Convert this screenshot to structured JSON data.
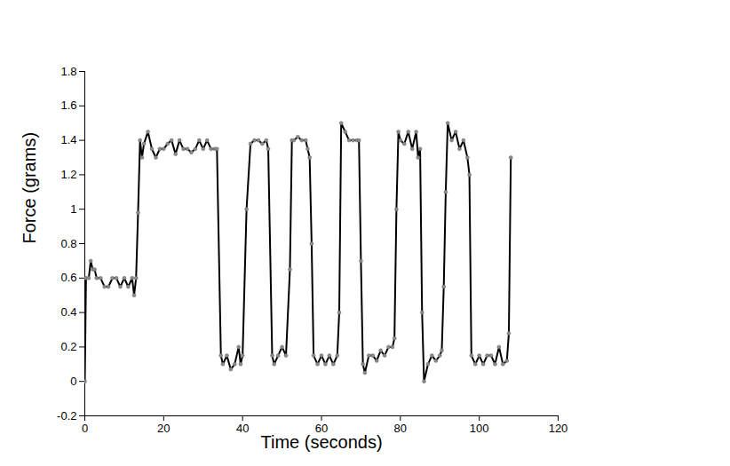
{
  "chart_data": {
    "type": "line",
    "xlabel": "Time (seconds)",
    "ylabel": "Force (grams)",
    "color": "#000000",
    "marker": "circle",
    "xlim": [
      0,
      120
    ],
    "xticks": [
      0,
      20,
      40,
      60,
      80,
      100,
      120
    ],
    "ylim": [
      -0.2,
      1.8
    ],
    "yticks": [
      -0.2,
      0,
      0.2,
      0.4,
      0.6,
      0.8,
      1,
      1.2,
      1.4,
      1.6,
      1.8
    ],
    "grid": false,
    "x": [
      0,
      0.3,
      1,
      1.5,
      2,
      2.5,
      3,
      4,
      5,
      6,
      7,
      8,
      9,
      10,
      11,
      12,
      12.5,
      13,
      13.5,
      14,
      14.5,
      15,
      16,
      17,
      18,
      19,
      20,
      21,
      22,
      23,
      24,
      25,
      26,
      27,
      28,
      29,
      30,
      31,
      32,
      33,
      33.5,
      34.5,
      35,
      36,
      37,
      38,
      39,
      39.5,
      40,
      41,
      42,
      43,
      44,
      45,
      46,
      46.5,
      47.5,
      48,
      49,
      50,
      51,
      52,
      52.5,
      53,
      54,
      55,
      56,
      56.5,
      57,
      57.5,
      58,
      59,
      60,
      61,
      62,
      63,
      64,
      64.5,
      65,
      66,
      67,
      68,
      69,
      69.5,
      70,
      70.5,
      71,
      72,
      73,
      74,
      75,
      76,
      77,
      78,
      78.5,
      79,
      79.5,
      80,
      81,
      82,
      83,
      84,
      84.5,
      85,
      85.5,
      86,
      87,
      88,
      89,
      90,
      90.5,
      91,
      91.5,
      92,
      93,
      94,
      95,
      96,
      97,
      97.5,
      98,
      99,
      100,
      101,
      102,
      103,
      104,
      105,
      106,
      107,
      107.5,
      108
    ],
    "values": [
      0,
      0.6,
      0.6,
      0.7,
      0.65,
      0.65,
      0.6,
      0.6,
      0.55,
      0.55,
      0.6,
      0.6,
      0.55,
      0.6,
      0.55,
      0.6,
      0.5,
      0.6,
      0.98,
      1.4,
      1.3,
      1.38,
      1.45,
      1.35,
      1.3,
      1.35,
      1.35,
      1.38,
      1.4,
      1.32,
      1.4,
      1.35,
      1.35,
      1.33,
      1.35,
      1.4,
      1.35,
      1.4,
      1.35,
      1.35,
      1.35,
      0.15,
      0.1,
      0.15,
      0.07,
      0.1,
      0.2,
      0.1,
      0.15,
      1.0,
      1.38,
      1.4,
      1.4,
      1.38,
      1.4,
      1.35,
      0.15,
      0.1,
      0.15,
      0.2,
      0.15,
      0.65,
      1.4,
      1.4,
      1.42,
      1.4,
      1.4,
      1.35,
      1.3,
      0.8,
      0.15,
      0.1,
      0.15,
      0.1,
      0.15,
      0.1,
      0.15,
      0.4,
      1.5,
      1.45,
      1.4,
      1.4,
      1.4,
      1.4,
      0.7,
      0.1,
      0.05,
      0.15,
      0.15,
      0.12,
      0.18,
      0.15,
      0.2,
      0.2,
      0.25,
      1.0,
      1.45,
      1.4,
      1.38,
      1.45,
      1.35,
      1.45,
      1.3,
      1.35,
      0.4,
      0,
      0.1,
      0.15,
      0.12,
      0.15,
      0.18,
      0.55,
      1.1,
      1.5,
      1.4,
      1.45,
      1.35,
      1.4,
      1.3,
      1.2,
      0.15,
      0.1,
      0.15,
      0.1,
      0.15,
      0.15,
      0.1,
      0.2,
      0.1,
      0.12,
      0.28,
      1.3
    ]
  }
}
